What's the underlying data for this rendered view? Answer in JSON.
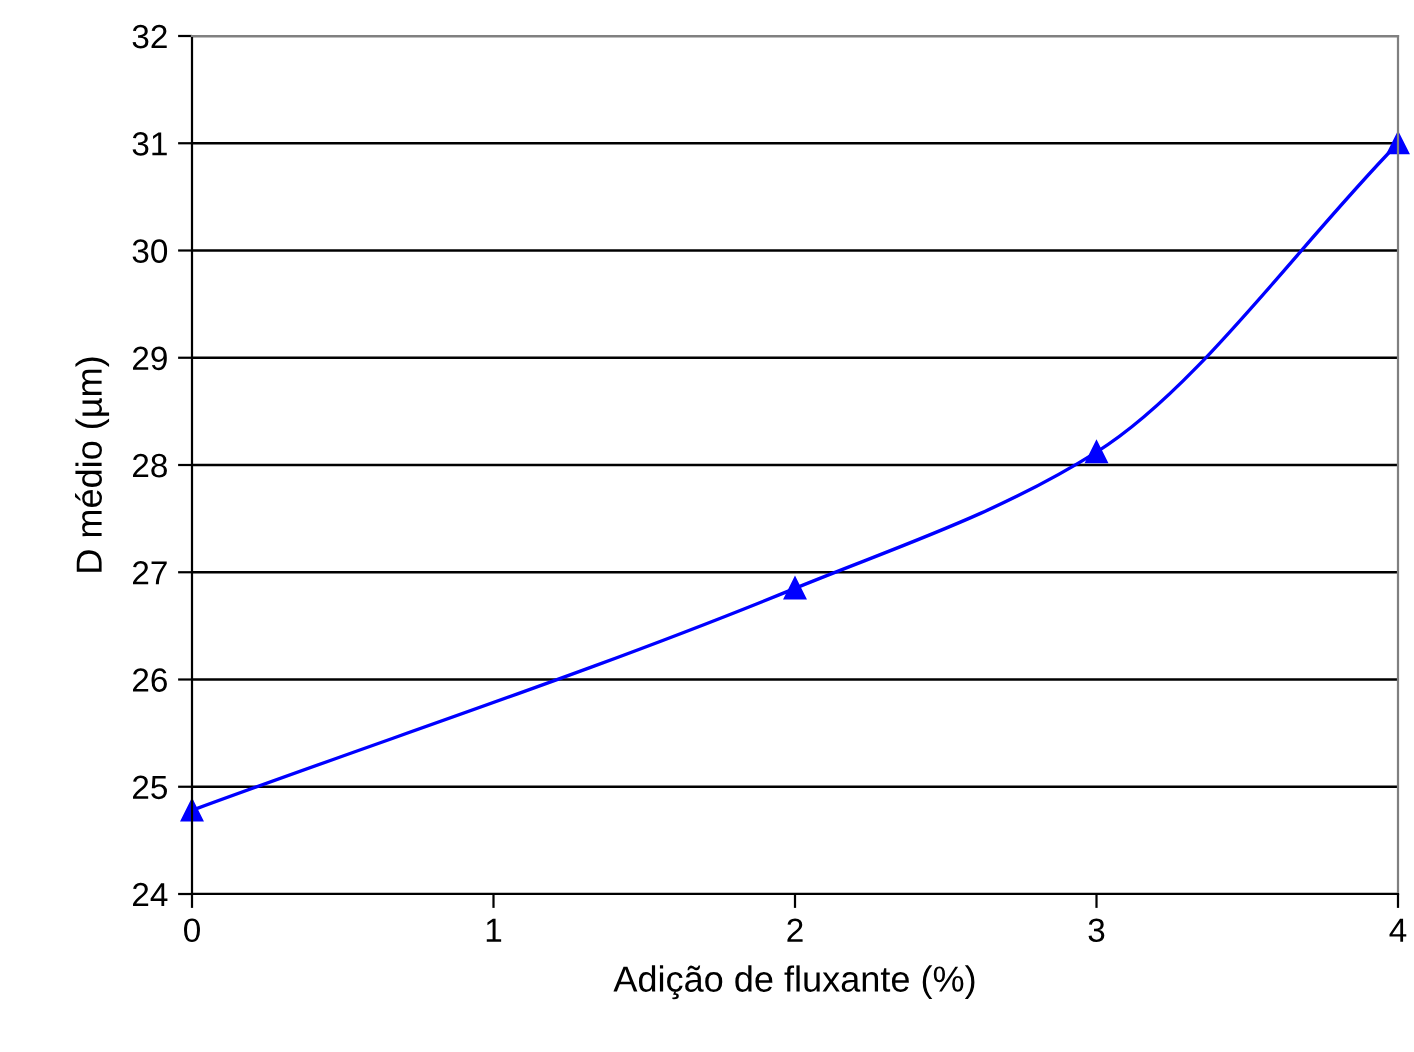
{
  "chart_data": {
    "type": "line",
    "xlabel": "Adição de fluxante (%)",
    "ylabel": "D médio (µm)",
    "x": [
      0,
      2,
      3,
      4
    ],
    "series": [
      {
        "color": "#0000ff",
        "values": [
          24.78,
          26.85,
          28.12,
          31.0
        ]
      }
    ],
    "xlim": [
      0,
      4
    ],
    "xticks": [
      0,
      1,
      2,
      3,
      4
    ],
    "ylim": [
      24,
      32
    ],
    "yticks": [
      24,
      25,
      26,
      27,
      28,
      29,
      30,
      31,
      32
    ],
    "grid": "y",
    "marker": "triangle",
    "line_style": "solid"
  }
}
